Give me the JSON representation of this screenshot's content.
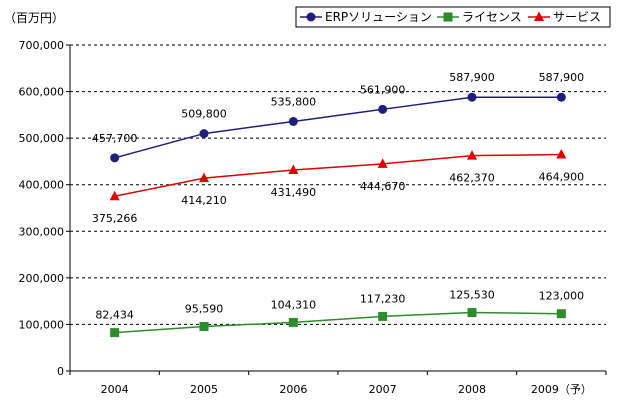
{
  "chart_data": {
    "type": "line",
    "unit_label": "（百万円）",
    "categories": [
      "2004",
      "2005",
      "2006",
      "2007",
      "2008",
      "2009（予）"
    ],
    "ylim": [
      0,
      700000
    ],
    "yticks": [
      0,
      100000,
      200000,
      300000,
      400000,
      500000,
      600000,
      700000
    ],
    "ytick_labels": [
      "0",
      "100,000",
      "200,000",
      "300,000",
      "400,000",
      "500,000",
      "600,000",
      "700,000"
    ],
    "grid": "horizontal-dashed",
    "legend_position": "top-right",
    "series": [
      {
        "name": "ERPソリューション",
        "color": "#1f1f7a",
        "marker": "circle",
        "values": [
          457700,
          509800,
          535800,
          561900,
          587900,
          587900
        ],
        "labels": [
          "457,700",
          "509,800",
          "535,800",
          "561,900",
          "587,900",
          "587,900"
        ]
      },
      {
        "name": "ライセンス",
        "color": "#2e8b2e",
        "marker": "square",
        "values": [
          82434,
          95590,
          104310,
          117230,
          125530,
          123000
        ],
        "labels": [
          "82,434",
          "95,590",
          "104,310",
          "117,230",
          "125,530",
          "123,000"
        ]
      },
      {
        "name": "サービス",
        "color": "#e00000",
        "marker": "triangle",
        "values": [
          375266,
          414210,
          431490,
          444670,
          462370,
          464900
        ],
        "labels": [
          "375,266",
          "414,210",
          "431,490",
          "444,670",
          "462,370",
          "464,900"
        ]
      }
    ]
  }
}
